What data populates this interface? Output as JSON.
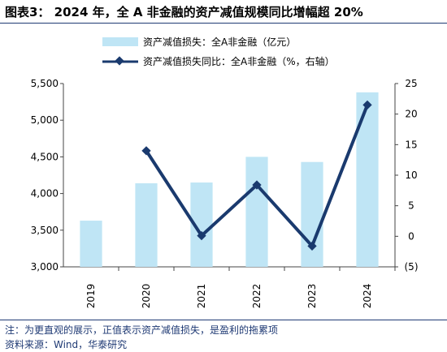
{
  "title": "图表3： 2024 年，全 A 非金融的资产减值规模同比增幅超 20%",
  "note": "注：为更直观的展示，正值表示资产减值损失，是盈利的拖累项",
  "source": "资料来源：Wind，华泰研究",
  "colors": {
    "bar": "#bfe5f5",
    "line": "#1a3a6e",
    "rule": "#1f3a74"
  },
  "chart_data": {
    "type": "bar",
    "categories": [
      "2019",
      "2020",
      "2021",
      "2022",
      "2023",
      "2024"
    ],
    "series": [
      {
        "name": "资产减值损失：全A非金融（亿元）",
        "type": "bar",
        "axis": "left",
        "values": [
          3630,
          4140,
          4150,
          4500,
          4430,
          5380
        ]
      },
      {
        "name": "资产减值损失同比：全A非金融（%，右轴）",
        "type": "line",
        "axis": "right",
        "values": [
          null,
          14.0,
          0.1,
          8.4,
          -1.6,
          21.5
        ]
      }
    ],
    "y_left": {
      "ylim": [
        3000,
        5500
      ],
      "ticks": [
        "3,000",
        "3,500",
        "4,000",
        "4,500",
        "5,000",
        "5,500"
      ]
    },
    "y_right": {
      "ylim": [
        -5,
        25
      ],
      "ticks": [
        "(5)",
        "0",
        "5",
        "10",
        "15",
        "20",
        "25"
      ]
    },
    "legend": "top"
  }
}
